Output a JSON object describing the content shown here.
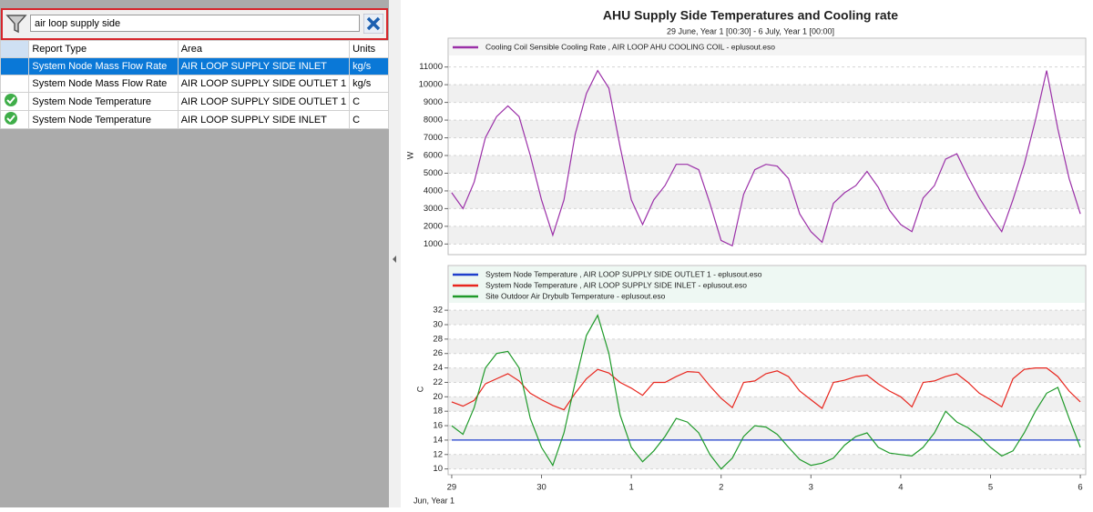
{
  "filter": {
    "text": "air loop supply side"
  },
  "table": {
    "columns": [
      "Report Type",
      "Area",
      "Units"
    ],
    "rows": [
      [
        "System Node Mass Flow Rate",
        "AIR LOOP SUPPLY SIDE INLET",
        "kg/s"
      ],
      [
        "System Node Mass Flow Rate",
        "AIR LOOP SUPPLY SIDE OUTLET 1",
        "kg/s"
      ],
      [
        "System Node Temperature",
        "AIR LOOP SUPPLY SIDE OUTLET 1",
        "C"
      ],
      [
        "System Node Temperature",
        "AIR LOOP SUPPLY SIDE INLET",
        "C"
      ]
    ]
  },
  "chart_data": [
    {
      "type": "line",
      "title": "AHU Supply Side Temperatures and Cooling rate",
      "subtitle": "29 June, Year 1 [00:30] - 6 July, Year 1 [00:00]",
      "ylabel": "W",
      "xlim": [
        -0.04,
        7.06
      ],
      "ylim": [
        400,
        11600
      ],
      "yticks": [
        1000,
        2000,
        3000,
        4000,
        5000,
        6000,
        7000,
        8000,
        9000,
        10000,
        11000
      ],
      "grid": true,
      "x": [
        0,
        0.125,
        0.25,
        0.375,
        0.5,
        0.625,
        0.75,
        0.875,
        1,
        1.125,
        1.25,
        1.375,
        1.5,
        1.625,
        1.75,
        1.875,
        2,
        2.125,
        2.25,
        2.375,
        2.5,
        2.625,
        2.75,
        2.875,
        3,
        3.125,
        3.25,
        3.375,
        3.5,
        3.625,
        3.75,
        3.875,
        4,
        4.125,
        4.25,
        4.375,
        4.5,
        4.625,
        4.75,
        4.875,
        5,
        5.125,
        5.25,
        5.375,
        5.5,
        5.625,
        5.75,
        5.875,
        6,
        6.125,
        6.25,
        6.375,
        6.5,
        6.625,
        6.75,
        6.875,
        7
      ],
      "series": [
        {
          "name": "Cooling Coil Sensible Cooling Rate , AIR LOOP AHU COOLING COIL - eplusout.eso",
          "color": "#9b30a8",
          "values": [
            3900,
            3000,
            4500,
            7000,
            8200,
            8800,
            8200,
            6000,
            3500,
            1500,
            3500,
            7200,
            9500,
            10800,
            9800,
            6500,
            3500,
            2100,
            3500,
            4300,
            5500,
            5500,
            5200,
            3300,
            1200,
            900,
            3800,
            5200,
            5500,
            5400,
            4700,
            2700,
            1700,
            1100,
            3300,
            3900,
            4300,
            5100,
            4200,
            2900,
            2100,
            1700,
            3600,
            4300,
            5800,
            6100,
            4800,
            3600,
            2600,
            1700,
            3500,
            5500,
            8000,
            10800,
            7500,
            4700,
            2700
          ]
        }
      ]
    },
    {
      "type": "line",
      "ylabel": "C",
      "xlabel": "Jun, Year 1",
      "xlim": [
        -0.04,
        7.06
      ],
      "ylim": [
        9.2,
        32.9
      ],
      "yticks": [
        10,
        12,
        14,
        16,
        18,
        20,
        22,
        24,
        26,
        28,
        30,
        32
      ],
      "grid": true,
      "xticks": [
        {
          "value": 0,
          "label": "29"
        },
        {
          "value": 1,
          "label": "30"
        },
        {
          "value": 2,
          "label": "1"
        },
        {
          "value": 3,
          "label": "2"
        },
        {
          "value": 4,
          "label": "3"
        },
        {
          "value": 5,
          "label": "4"
        },
        {
          "value": 6,
          "label": "5"
        },
        {
          "value": 7,
          "label": "6"
        }
      ],
      "x": [
        0,
        0.125,
        0.25,
        0.375,
        0.5,
        0.625,
        0.75,
        0.875,
        1,
        1.125,
        1.25,
        1.375,
        1.5,
        1.625,
        1.75,
        1.875,
        2,
        2.125,
        2.25,
        2.375,
        2.5,
        2.625,
        2.75,
        2.875,
        3,
        3.125,
        3.25,
        3.375,
        3.5,
        3.625,
        3.75,
        3.875,
        4,
        4.125,
        4.25,
        4.375,
        4.5,
        4.625,
        4.75,
        4.875,
        5,
        5.125,
        5.25,
        5.375,
        5.5,
        5.625,
        5.75,
        5.875,
        6,
        6.125,
        6.25,
        6.375,
        6.5,
        6.625,
        6.75,
        6.875,
        7
      ],
      "series": [
        {
          "name": "System Node Temperature , AIR LOOP SUPPLY SIDE OUTLET 1 - eplusout.eso",
          "color": "#1f3fcc",
          "values": [
            14,
            14,
            14,
            14,
            14,
            14,
            14,
            14,
            14,
            14,
            14,
            14,
            14,
            14,
            14,
            14,
            14,
            14,
            14,
            14,
            14,
            14,
            14,
            14,
            14,
            14,
            14,
            14,
            14,
            14,
            14,
            14,
            14,
            14,
            14,
            14,
            14,
            14,
            14,
            14,
            14,
            14,
            14,
            14,
            14,
            14,
            14,
            14,
            14,
            14,
            14,
            14,
            14,
            14,
            14,
            14,
            14
          ]
        },
        {
          "name": "System Node Temperature , AIR LOOP SUPPLY SIDE INLET - eplusout.eso",
          "color": "#e8261e",
          "values": [
            19.3,
            18.7,
            19.5,
            21.8,
            22.5,
            23.2,
            22.2,
            20.5,
            19.6,
            18.8,
            18.2,
            20.5,
            22.5,
            23.8,
            23.3,
            22,
            21.2,
            20.2,
            22,
            22,
            22.8,
            23.5,
            23.4,
            21.5,
            19.8,
            18.5,
            22,
            22.2,
            23.2,
            23.6,
            22.8,
            20.8,
            19.6,
            18.4,
            22,
            22.3,
            22.8,
            23,
            21.8,
            20.8,
            20,
            18.6,
            22,
            22.2,
            22.8,
            23.2,
            22,
            20.5,
            19.6,
            18.6,
            22.5,
            23.8,
            24,
            24,
            22.8,
            20.8,
            19.3
          ]
        },
        {
          "name": "Site Outdoor Air Drybulb Temperature  - eplusout.eso",
          "color": "#1f9a2a",
          "values": [
            16,
            14.8,
            18.5,
            24,
            26,
            26.3,
            24,
            17,
            13,
            10.5,
            15,
            22,
            28.5,
            31.3,
            26,
            17.5,
            13,
            11,
            12.5,
            14.5,
            17,
            16.5,
            15,
            12,
            10,
            11.5,
            14.5,
            16,
            15.8,
            14.8,
            13,
            11.3,
            10.5,
            10.8,
            11.5,
            13.3,
            14.5,
            15,
            13,
            12.2,
            12,
            11.8,
            13,
            15,
            18,
            16.5,
            15.7,
            14.5,
            13,
            11.8,
            12.5,
            15,
            18,
            20.5,
            21.3,
            17,
            13
          ]
        }
      ]
    }
  ]
}
